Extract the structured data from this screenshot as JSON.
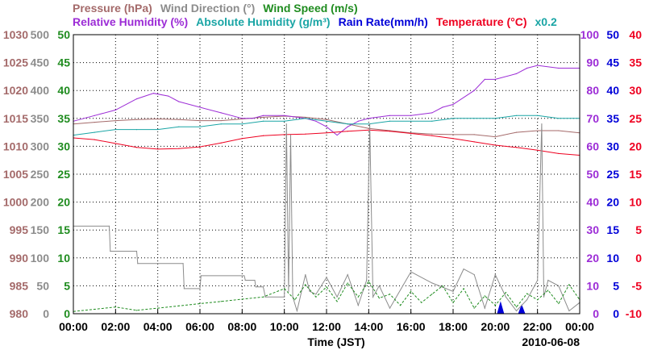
{
  "chart_data": {
    "type": "line",
    "date": "2010-06-08",
    "xlabel": "Time (JST)",
    "x_ticks": [
      "00:00",
      "02:00",
      "04:00",
      "06:00",
      "08:00",
      "10:00",
      "12:00",
      "14:00",
      "16:00",
      "18:00",
      "20:00",
      "22:00",
      "00:00"
    ],
    "x_range_hours": [
      0,
      24
    ],
    "grid": true,
    "legend": {
      "row1": [
        {
          "label": "Pressure (hPa)",
          "color": "#a46a6a"
        },
        {
          "label": "Wind Direction (°)",
          "color": "#8c8c8c"
        },
        {
          "label": "Wind Speed (m/s)",
          "color": "#1f8c1f"
        }
      ],
      "row2": [
        {
          "label": "Relative Humidity (%)",
          "color": "#9c2cd6"
        },
        {
          "label": "Absolute Humidity (g/m³)",
          "color": "#1aa5a5"
        },
        {
          "label": "Rain Rate(mm/h)",
          "color": "#0000d8"
        },
        {
          "label": "Temperature (°C)",
          "color": "#ee0020"
        },
        {
          "label": "x0.2",
          "color": "#1aa5a5"
        }
      ]
    },
    "axes": {
      "pressure": {
        "color": "#a46a6a",
        "min": 980,
        "max": 1030,
        "ticks": [
          "980",
          "985",
          "990",
          "995",
          "1000",
          "1005",
          "1010",
          "1015",
          "1020",
          "1025",
          "1030"
        ]
      },
      "wind_dir": {
        "color": "#8c8c8c",
        "min": 0,
        "max": 500,
        "ticks": [
          "0",
          "50",
          "100",
          "150",
          "200",
          "250",
          "300",
          "350",
          "400",
          "450",
          "500"
        ]
      },
      "wind_speed": {
        "color": "#1f8c1f",
        "min": 0,
        "max": 50,
        "ticks": [
          "0",
          "5",
          "10",
          "15",
          "20",
          "25",
          "30",
          "35",
          "40",
          "45",
          "50"
        ]
      },
      "humidity": {
        "color": "#9c2cd6",
        "min": 0,
        "max": 100,
        "ticks": [
          "0",
          "10",
          "20",
          "30",
          "40",
          "50",
          "60",
          "70",
          "80",
          "90",
          "100"
        ]
      },
      "rain": {
        "color": "#0000d8",
        "min": 0,
        "max": 50,
        "ticks": [
          "0",
          "5",
          "10",
          "15",
          "20",
          "25",
          "30",
          "35",
          "40",
          "45",
          "50"
        ]
      },
      "temperature": {
        "color": "#ee0020",
        "min": -10,
        "max": 40,
        "ticks": [
          "-10",
          "-5",
          "0",
          "5",
          "10",
          "15",
          "20",
          "25",
          "30",
          "35",
          "40"
        ]
      }
    },
    "series": [
      {
        "name": "Pressure (hPa)",
        "axis": "pressure",
        "color": "#a46a6a",
        "x": [
          0,
          1,
          2,
          3,
          4,
          5,
          6,
          7,
          8,
          9,
          10,
          11,
          12,
          13,
          14,
          15,
          16,
          17,
          18,
          19,
          20,
          21,
          22,
          23,
          24
        ],
        "y": [
          1014,
          1014.3,
          1014.6,
          1014.8,
          1014.9,
          1014.8,
          1014.6,
          1014.6,
          1014.9,
          1015.2,
          1015.4,
          1015.2,
          1014.8,
          1014.0,
          1013.2,
          1012.8,
          1012.4,
          1012.2,
          1012.1,
          1012.1,
          1011.7,
          1012.5,
          1012.8,
          1012.8,
          1012.4
        ]
      },
      {
        "name": "Relative Humidity (%)",
        "axis": "humidity",
        "color": "#9c2cd6",
        "x": [
          0,
          1,
          2,
          3,
          3.8,
          4.5,
          5,
          6,
          7,
          8,
          8.5,
          9,
          10,
          11,
          11.5,
          12,
          12.5,
          13,
          13.5,
          14,
          15,
          16,
          17,
          17.5,
          18,
          19,
          19.5,
          20,
          21,
          21.5,
          22,
          23,
          24
        ],
        "y": [
          69,
          71,
          73,
          77,
          79,
          78,
          76,
          74,
          72,
          70,
          70,
          71,
          71,
          70,
          69,
          67,
          64,
          67,
          69,
          70,
          71,
          71,
          72,
          74,
          75,
          80,
          84,
          84,
          86,
          88,
          89,
          88,
          88
        ]
      },
      {
        "name": "Absolute Humidity (g/m³)",
        "axis": "humidity",
        "color": "#1aa5a5",
        "x": [
          0,
          1,
          2,
          3,
          4,
          5,
          6,
          7,
          8,
          9,
          10,
          11,
          12,
          13,
          14,
          15,
          16,
          17,
          18,
          19,
          20,
          21,
          22,
          23,
          24
        ],
        "y": [
          64,
          65,
          66,
          66,
          66,
          67,
          67,
          68,
          68,
          69,
          69,
          70,
          69,
          68,
          68,
          69,
          69,
          69,
          70,
          70,
          70,
          71,
          71,
          70,
          70
        ]
      },
      {
        "name": "Temperature (°C)",
        "axis": "temperature",
        "color": "#ee0020",
        "x": [
          0,
          1,
          2,
          3,
          4,
          5,
          6,
          7,
          8,
          9,
          10,
          11,
          12,
          13,
          14,
          15,
          16,
          17,
          18,
          19,
          20,
          21,
          22,
          23,
          24
        ],
        "y": [
          21.5,
          21.2,
          20.5,
          19.8,
          19.5,
          19.6,
          19.9,
          20.6,
          21.4,
          21.9,
          22.1,
          22.2,
          22.4,
          22.7,
          22.9,
          22.7,
          22.3,
          21.9,
          21.4,
          20.8,
          20.2,
          19.8,
          19.3,
          18.7,
          18.4
        ]
      },
      {
        "name": "Rain Rate(mm/h)",
        "axis": "rain",
        "color": "#0000d8",
        "x": [
          0,
          20.1,
          20.25,
          20.4,
          21.1,
          21.25,
          21.4,
          24
        ],
        "y": [
          0,
          0,
          2,
          0,
          0,
          1.5,
          0,
          0
        ]
      },
      {
        "name": "Wind Direction (°)",
        "axis": "wind_dir",
        "color": "#8c8c8c",
        "x": [
          0,
          1.7,
          1.75,
          3,
          3.05,
          5.2,
          5.25,
          6,
          6.05,
          8.1,
          8.15,
          8.6,
          8.65,
          9.0,
          9.1,
          10.0,
          10.1,
          10.2,
          10.3,
          10.4,
          10.6,
          11.0,
          11.2,
          11.5,
          12.0,
          12.5,
          13.0,
          13.5,
          13.9,
          14.05,
          14.2,
          14.5,
          15,
          16,
          17,
          18,
          18.5,
          19,
          19.5,
          20,
          20.5,
          21,
          21.5,
          22,
          22.2,
          22.3,
          22.5,
          23,
          23.5,
          24
        ],
        "y": [
          157,
          157,
          112,
          112,
          90,
          90,
          45,
          45,
          68,
          68,
          60,
          60,
          48,
          48,
          30,
          30,
          340,
          40,
          320,
          30,
          5,
          70,
          40,
          35,
          65,
          30,
          70,
          15,
          60,
          340,
          30,
          50,
          10,
          75,
          55,
          40,
          80,
          70,
          10,
          70,
          30,
          5,
          25,
          60,
          340,
          30,
          60,
          50,
          5,
          20
        ]
      },
      {
        "name": "Wind Speed (m/s)",
        "axis": "wind_speed",
        "color": "#1f8c1f",
        "x": [
          0,
          1,
          2,
          3,
          4,
          5,
          6,
          7,
          8,
          9,
          10,
          10.5,
          11,
          11.5,
          12,
          12.5,
          13,
          13.5,
          14,
          14.5,
          15,
          15.5,
          16,
          16.5,
          17,
          17.5,
          18,
          18.5,
          19,
          19.5,
          20,
          20.5,
          21,
          21.5,
          22,
          22.5,
          23,
          23.5,
          24
        ],
        "y": [
          0.4,
          0.8,
          1.2,
          0.6,
          1.0,
          1.4,
          1.8,
          2.2,
          2.6,
          3.0,
          4.5,
          2.5,
          5.2,
          3.0,
          4.8,
          2.2,
          5.5,
          3.0,
          5.8,
          2.8,
          3.5,
          1.5,
          4.0,
          2.0,
          3.5,
          5.0,
          2.0,
          4.5,
          1.0,
          3.2,
          1.5,
          3.8,
          1.2,
          3.6,
          2.5,
          4.2,
          1.8,
          5.2,
          2.5
        ]
      }
    ],
    "annotations": []
  }
}
